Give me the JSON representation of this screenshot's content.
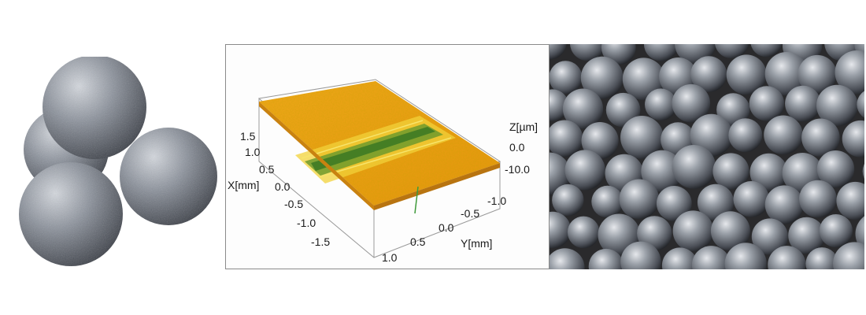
{
  "palette": {
    "steel_light": "#c9cdd3",
    "steel_mid": "#7f858f",
    "steel_dark": "#3a3d44",
    "surface_orange": "#f0a018",
    "surface_yellow": "#f2d23a",
    "surface_green": "#4e8a2a",
    "frame_gray": "#8a8a8a",
    "photo_bg": "#2a2a2c"
  },
  "panels": {
    "left": {
      "icon": "grinding-balls-photo"
    },
    "middle": {
      "icon": "3d-surface-profile",
      "axes": {
        "x_label": "X[mm]",
        "y_label": "Y[mm]",
        "z_label": "Z[µm]",
        "x_ticks": [
          "1.5",
          "1.0",
          "0.5",
          "0.0",
          "-0.5",
          "-1.0",
          "-1.5"
        ],
        "y_ticks": [
          "1.0",
          "0.5",
          "0.0",
          "-0.5",
          "-1.0"
        ],
        "z_ticks": [
          "0.0",
          "-10.0"
        ]
      }
    },
    "right": {
      "icon": "steel-shot-pile-photo"
    }
  }
}
